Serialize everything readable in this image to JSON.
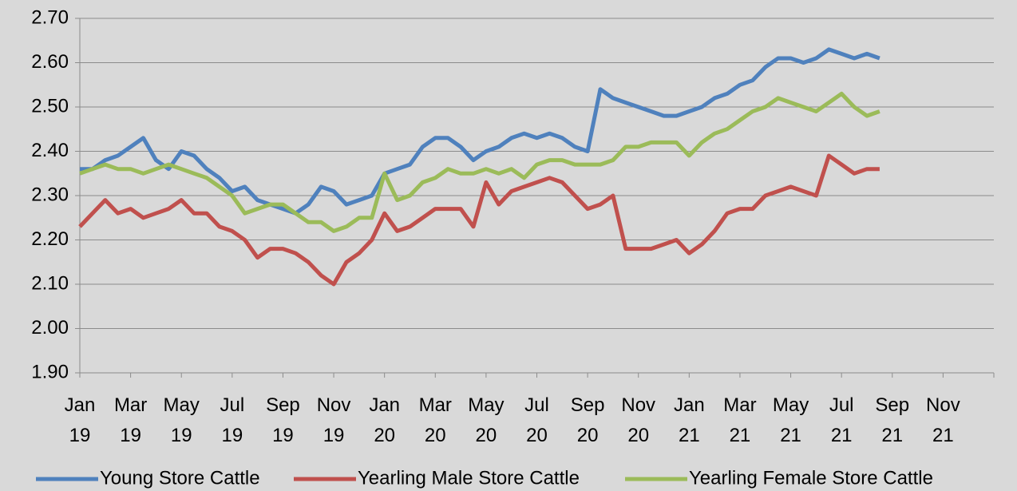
{
  "chart_data": {
    "type": "line",
    "categories": [
      "Jan 19",
      null,
      null,
      null,
      "Mar 19",
      null,
      null,
      null,
      "May 19",
      null,
      null,
      null,
      "Jul 19",
      null,
      null,
      null,
      "Sep 19",
      null,
      null,
      null,
      "Nov 19",
      null,
      null,
      null,
      "Jan 20",
      null,
      null,
      null,
      "Mar 20",
      null,
      null,
      null,
      "May 20",
      null,
      null,
      null,
      "Jul 20",
      null,
      null,
      null,
      "Sep 20",
      null,
      null,
      null,
      "Nov 20",
      null,
      null,
      null,
      "Jan 21",
      null,
      null,
      null,
      "Mar 21",
      null,
      null,
      null,
      "May 21",
      null,
      null,
      null,
      "Jul 21",
      null,
      null,
      null,
      "Sep 21",
      null,
      null,
      null,
      "Nov 21",
      null,
      null,
      null
    ],
    "series": [
      {
        "name": "Young Store Cattle",
        "color": "#4f81bd",
        "values": [
          2.36,
          2.36,
          2.38,
          2.39,
          2.41,
          2.43,
          2.38,
          2.36,
          2.4,
          2.39,
          2.36,
          2.34,
          2.31,
          2.32,
          2.29,
          2.28,
          2.27,
          2.26,
          2.28,
          2.32,
          2.31,
          2.28,
          2.29,
          2.3,
          2.35,
          2.36,
          2.37,
          2.41,
          2.43,
          2.43,
          2.41,
          2.38,
          2.4,
          2.41,
          2.43,
          2.44,
          2.43,
          2.44,
          2.43,
          2.41,
          2.4,
          2.54,
          2.52,
          2.51,
          2.5,
          2.49,
          2.48,
          2.48,
          2.49,
          2.5,
          2.52,
          2.53,
          2.55,
          2.56,
          2.59,
          2.61,
          2.61,
          2.6,
          2.61,
          2.63,
          2.62,
          2.61,
          2.62,
          2.61,
          null,
          null,
          null,
          null,
          null,
          null,
          null,
          null
        ]
      },
      {
        "name": "Yearling Male Store Cattle",
        "color": "#c0504d",
        "values": [
          2.23,
          2.26,
          2.29,
          2.26,
          2.27,
          2.25,
          2.26,
          2.27,
          2.29,
          2.26,
          2.26,
          2.23,
          2.22,
          2.2,
          2.16,
          2.18,
          2.18,
          2.17,
          2.15,
          2.12,
          2.1,
          2.15,
          2.17,
          2.2,
          2.26,
          2.22,
          2.23,
          2.25,
          2.27,
          2.27,
          2.27,
          2.23,
          2.33,
          2.28,
          2.31,
          2.32,
          2.33,
          2.34,
          2.33,
          2.3,
          2.27,
          2.28,
          2.3,
          2.18,
          2.18,
          2.18,
          2.19,
          2.2,
          2.17,
          2.19,
          2.22,
          2.26,
          2.27,
          2.27,
          2.3,
          2.31,
          2.32,
          2.31,
          2.3,
          2.39,
          2.37,
          2.35,
          2.36,
          2.36,
          null,
          null,
          null,
          null,
          null,
          null,
          null,
          null
        ]
      },
      {
        "name": "Yearling Female Store Cattle",
        "color": "#9bbb59",
        "values": [
          2.35,
          2.36,
          2.37,
          2.36,
          2.36,
          2.35,
          2.36,
          2.37,
          2.36,
          2.35,
          2.34,
          2.32,
          2.3,
          2.26,
          2.27,
          2.28,
          2.28,
          2.26,
          2.24,
          2.24,
          2.22,
          2.23,
          2.25,
          2.25,
          2.35,
          2.29,
          2.3,
          2.33,
          2.34,
          2.36,
          2.35,
          2.35,
          2.36,
          2.35,
          2.36,
          2.34,
          2.37,
          2.38,
          2.38,
          2.37,
          2.37,
          2.37,
          2.38,
          2.41,
          2.41,
          2.42,
          2.42,
          2.42,
          2.39,
          2.42,
          2.44,
          2.45,
          2.47,
          2.49,
          2.5,
          2.52,
          2.51,
          2.5,
          2.49,
          2.51,
          2.53,
          2.5,
          2.48,
          2.49,
          null,
          null,
          null,
          null,
          null,
          null,
          null,
          null
        ]
      }
    ],
    "ylim": [
      1.9,
      2.7
    ],
    "yticks": [
      {
        "value": 1.9,
        "label": "1.90"
      },
      {
        "value": 2.0,
        "label": "2.00"
      },
      {
        "value": 2.1,
        "label": "2.10"
      },
      {
        "value": 2.2,
        "label": "2.20"
      },
      {
        "value": 2.3,
        "label": "2.30"
      },
      {
        "value": 2.4,
        "label": "2.40"
      },
      {
        "value": 2.5,
        "label": "2.50"
      },
      {
        "value": 2.6,
        "label": "2.60"
      },
      {
        "value": 2.7,
        "label": "2.70"
      }
    ],
    "grid": true
  }
}
